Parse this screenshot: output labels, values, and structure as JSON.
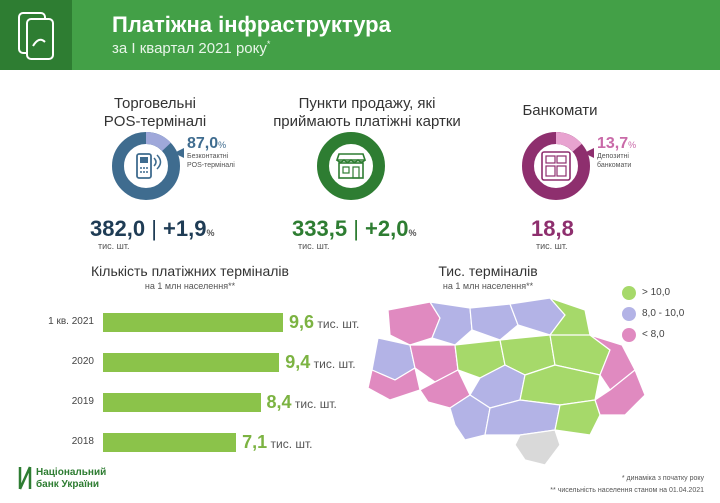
{
  "header": {
    "title": "Платіжна інфраструктура",
    "subtitle": "за I квартал 2021 року",
    "subtitle_mark": "*"
  },
  "pos": {
    "title_line1": "Торговельні",
    "title_line2": "POS-терміналі",
    "share_value": "87,0",
    "share_pct": "%",
    "share_label_line1": "Безконтактні",
    "share_label_line2": "POS-терміналі",
    "share_fraction": 0.87,
    "main_value": "382,0",
    "divider": "|",
    "growth": "+1,9",
    "growth_pct": "%",
    "unit": "тис. шт."
  },
  "points": {
    "title_line1": "Пункти продажу, які",
    "title_line2": "приймають платіжні картки",
    "main_value": "333,5",
    "divider": "|",
    "growth": "+2,0",
    "growth_pct": "%",
    "unit": "тис. шт."
  },
  "atm": {
    "title": "Банкомати",
    "share_value": "13,7",
    "share_pct": "%",
    "share_label_line1": "Депозитні",
    "share_label_line2": "банкомати",
    "share_fraction": 0.137,
    "main_value": "18,8",
    "unit": "тис. шт."
  },
  "bars": {
    "title": "Кількість платіжних терміналів",
    "subtitle": "на 1 млн населення**",
    "unit": "тис. шт."
  },
  "map": {
    "title": "Тис. терміналів",
    "subtitle": "на 1 млн населення**",
    "legend": [
      {
        "label": "> 10,0",
        "color": "#a6d96a"
      },
      {
        "label": "8,0 - 10,0",
        "color": "#b3b3e6"
      },
      {
        "label": "< 8,0",
        "color": "#e08ac0"
      }
    ]
  },
  "chart_data": {
    "type": "bar",
    "orientation": "horizontal",
    "title": "Кількість платіжних терміналів",
    "subtitle": "на 1 млн населення**",
    "categories": [
      "1 кв. 2021",
      "2020",
      "2019",
      "2018"
    ],
    "values": [
      9.6,
      9.4,
      8.4,
      7.1
    ],
    "value_labels": [
      "9,6",
      "9,4",
      "8,4",
      "7,1"
    ],
    "unit": "тис. шт.",
    "xlim": [
      0,
      9.6
    ],
    "grid": false
  },
  "footer": {
    "logo_line1": "Національний",
    "logo_line2": "банк України",
    "note1": "* динаміка з початку року",
    "note2": "** чисельність населення станом на 01.04.2021"
  },
  "colors": {
    "header_dark": "#2e7d32",
    "header_light": "#43a047",
    "pos_ring": "#3f6c8f",
    "pos_accent": "#9fa8da",
    "points_ring": "#2e7d32",
    "atm_ring": "#8e2f6e",
    "atm_accent": "#e8a3d0",
    "bar": "#8bc34a"
  }
}
